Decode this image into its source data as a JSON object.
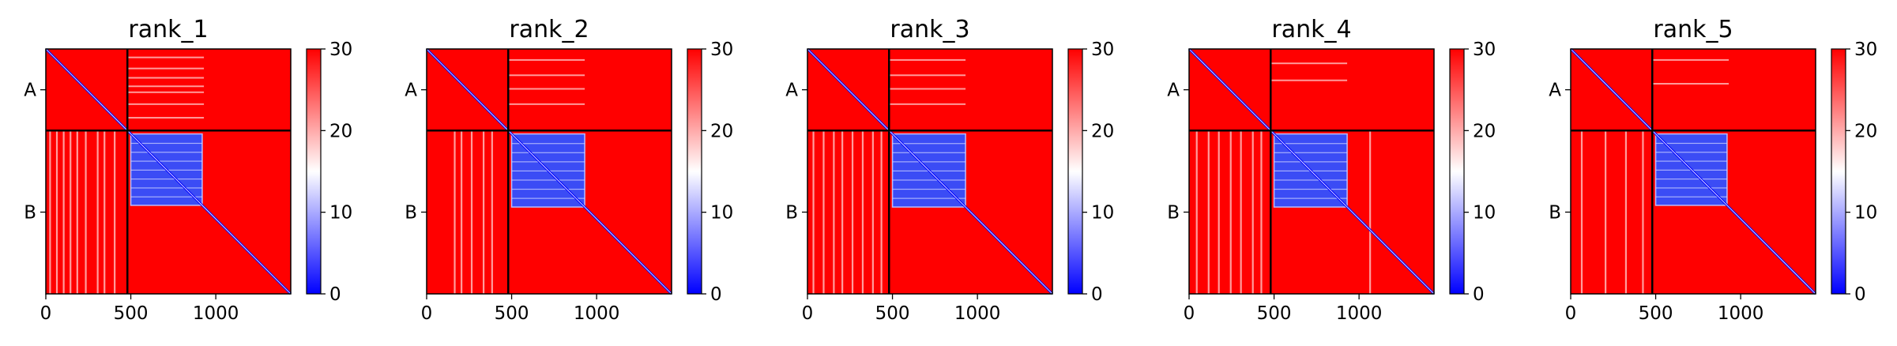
{
  "chart_data": [
    {
      "type": "heatmap",
      "title": "rank_1",
      "xlabel": "",
      "ylabel": "",
      "xlim": [
        0,
        1441
      ],
      "ylim": [
        1441,
        0
      ],
      "x_ticks": [
        {
          "value": 0,
          "label": "0"
        },
        {
          "value": 500,
          "label": "500"
        },
        {
          "value": 1000,
          "label": "1000"
        }
      ],
      "y_ticks": [
        {
          "value": 240,
          "label": "A"
        },
        {
          "value": 960,
          "label": "B"
        }
      ],
      "chain_boundary": 480,
      "colorbar": {
        "min": 0,
        "max": 30,
        "ticks": [
          0,
          10,
          20,
          30
        ],
        "colors": [
          "#0000ff",
          "#ffffff",
          "#ff0000"
        ]
      },
      "low_error_block": {
        "x": [
          500,
          920
        ],
        "y": [
          500,
          920
        ]
      },
      "stripe_columns": [
        20,
        60,
        100,
        140,
        180,
        230,
        300,
        340,
        400
      ],
      "chain_a_rows": [
        45,
        110,
        165,
        215,
        250,
        320,
        400
      ]
    },
    {
      "type": "heatmap",
      "title": "rank_2",
      "xlabel": "",
      "ylabel": "",
      "xlim": [
        0,
        1441
      ],
      "ylim": [
        1441,
        0
      ],
      "x_ticks": [
        {
          "value": 0,
          "label": "0"
        },
        {
          "value": 500,
          "label": "500"
        },
        {
          "value": 1000,
          "label": "1000"
        }
      ],
      "y_ticks": [
        {
          "value": 240,
          "label": "A"
        },
        {
          "value": 960,
          "label": "B"
        }
      ],
      "chain_boundary": 480,
      "colorbar": {
        "min": 0,
        "max": 30,
        "ticks": [
          0,
          10,
          20,
          30
        ],
        "colors": [
          "#0000ff",
          "#ffffff",
          "#ff0000"
        ]
      },
      "low_error_block": {
        "x": [
          500,
          930
        ],
        "y": [
          500,
          930
        ]
      },
      "stripe_columns": [
        160,
        200,
        260,
        330,
        380
      ],
      "chain_a_rows": [
        60,
        150,
        230,
        320
      ]
    },
    {
      "type": "heatmap",
      "title": "rank_3",
      "xlabel": "",
      "ylabel": "",
      "xlim": [
        0,
        1441
      ],
      "ylim": [
        1441,
        0
      ],
      "x_ticks": [
        {
          "value": 0,
          "label": "0"
        },
        {
          "value": 500,
          "label": "500"
        },
        {
          "value": 1000,
          "label": "1000"
        }
      ],
      "y_ticks": [
        {
          "value": 240,
          "label": "A"
        },
        {
          "value": 960,
          "label": "B"
        }
      ],
      "chain_boundary": 480,
      "colorbar": {
        "min": 0,
        "max": 30,
        "ticks": [
          0,
          10,
          20,
          30
        ],
        "colors": [
          "#0000ff",
          "#ffffff",
          "#ff0000"
        ]
      },
      "low_error_block": {
        "x": [
          500,
          930
        ],
        "y": [
          500,
          930
        ]
      },
      "stripe_columns": [
        30,
        90,
        150,
        200,
        260,
        320,
        380,
        430
      ],
      "chain_a_rows": [
        60,
        150,
        230,
        320
      ]
    },
    {
      "type": "heatmap",
      "title": "rank_4",
      "xlabel": "",
      "ylabel": "",
      "xlim": [
        0,
        1441
      ],
      "ylim": [
        1441,
        0
      ],
      "x_ticks": [
        {
          "value": 0,
          "label": "0"
        },
        {
          "value": 500,
          "label": "500"
        },
        {
          "value": 1000,
          "label": "1000"
        }
      ],
      "y_ticks": [
        {
          "value": 240,
          "label": "A"
        },
        {
          "value": 960,
          "label": "B"
        }
      ],
      "chain_boundary": 480,
      "colorbar": {
        "min": 0,
        "max": 30,
        "ticks": [
          0,
          10,
          20,
          30
        ],
        "colors": [
          "#0000ff",
          "#ffffff",
          "#ff0000"
        ]
      },
      "low_error_block": {
        "x": [
          500,
          930
        ],
        "y": [
          500,
          930
        ]
      },
      "stripe_columns": [
        40,
        110,
        170,
        240,
        300,
        370,
        420,
        1060
      ],
      "chain_a_rows": [
        80,
        180
      ]
    },
    {
      "type": "heatmap",
      "title": "rank_5",
      "xlabel": "",
      "ylabel": "",
      "xlim": [
        0,
        1441
      ],
      "ylim": [
        1441,
        0
      ],
      "x_ticks": [
        {
          "value": 0,
          "label": "0"
        },
        {
          "value": 500,
          "label": "500"
        },
        {
          "value": 1000,
          "label": "1000"
        }
      ],
      "y_ticks": [
        {
          "value": 240,
          "label": "A"
        },
        {
          "value": 960,
          "label": "B"
        }
      ],
      "chain_boundary": 480,
      "colorbar": {
        "min": 0,
        "max": 30,
        "ticks": [
          0,
          10,
          20,
          30
        ],
        "colors": [
          "#0000ff",
          "#ffffff",
          "#ff0000"
        ]
      },
      "low_error_block": {
        "x": [
          500,
          920
        ],
        "y": [
          500,
          920
        ]
      },
      "stripe_columns": [
        60,
        200,
        320,
        420
      ],
      "chain_a_rows": [
        60,
        200
      ]
    }
  ]
}
